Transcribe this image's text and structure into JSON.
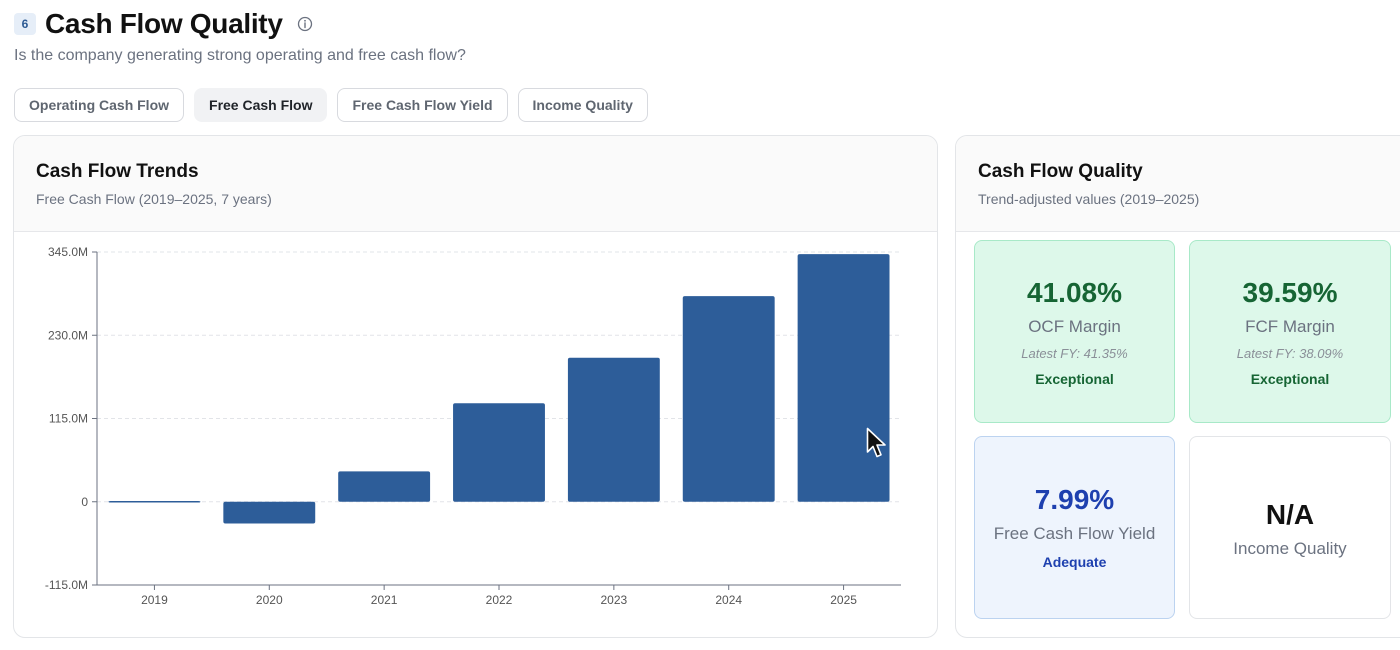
{
  "header": {
    "step": "6",
    "title": "Cash Flow Quality",
    "subtitle": "Is the company generating strong operating and free cash flow?",
    "info_icon": "info-circle-icon"
  },
  "tabs": [
    {
      "label": "Operating Cash Flow",
      "active": false
    },
    {
      "label": "Free Cash Flow",
      "active": true
    },
    {
      "label": "Free Cash Flow Yield",
      "active": false
    },
    {
      "label": "Income Quality",
      "active": false
    }
  ],
  "trend_card": {
    "title": "Cash Flow Trends",
    "subtitle": "Free Cash Flow (2019–2025, 7 years)"
  },
  "chart_data": {
    "type": "bar",
    "categories": [
      "2019",
      "2020",
      "2021",
      "2022",
      "2023",
      "2024",
      "2025"
    ],
    "values": [
      1,
      -30,
      42,
      136,
      199,
      284,
      342
    ],
    "unit": "M",
    "ylim": [
      -115,
      345
    ],
    "yticks": [
      -115,
      0,
      115,
      230,
      345
    ],
    "ytick_labels": [
      "-115.0M",
      "0",
      "115.0M",
      "230.0M",
      "345.0M"
    ],
    "grid": true,
    "bar_color": "#2d5d99"
  },
  "quality_card": {
    "title": "Cash Flow Quality",
    "subtitle": "Trend-adjusted values (2019–2025)",
    "metrics": [
      {
        "value": "41.08%",
        "label": "OCF Margin",
        "latest": "Latest FY: 41.35%",
        "rating": "Exceptional"
      },
      {
        "value": "39.59%",
        "label": "FCF Margin",
        "latest": "Latest FY: 38.09%",
        "rating": "Exceptional"
      },
      {
        "value": "7.99%",
        "label": "Free Cash Flow Yield",
        "rating": "Adequate"
      },
      {
        "value": "N/A",
        "label": "Income Quality"
      }
    ]
  },
  "colors": {
    "accent": "#2d5d99",
    "exceptional_bg": "#ddf8ea",
    "exceptional_text": "#166534",
    "adequate_bg": "#eef4fd",
    "adequate_text": "#1e40af"
  }
}
